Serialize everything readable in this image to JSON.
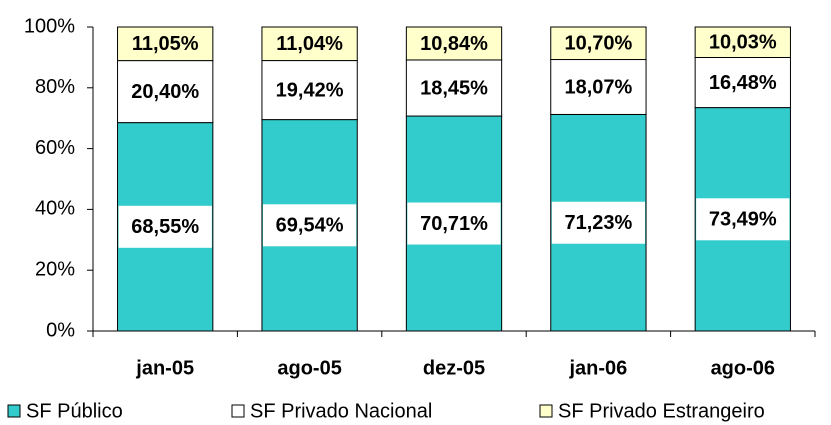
{
  "chart_data": {
    "type": "stacked_bar",
    "categories": [
      "jan-05",
      "ago-05",
      "dez-05",
      "jan-06",
      "ago-06"
    ],
    "series": [
      {
        "name": "SF Público",
        "color": "#33cccc",
        "values": [
          68.55,
          69.54,
          70.71,
          71.23,
          73.49
        ],
        "value_labels": [
          "68,55%",
          "69,54%",
          "70,71%",
          "71,23%",
          "73,49%"
        ]
      },
      {
        "name": "SF Privado Nacional",
        "color": "#ffffff",
        "values": [
          20.4,
          19.42,
          18.45,
          18.07,
          16.48
        ],
        "value_labels": [
          "20,40%",
          "19,42%",
          "18,45%",
          "18,07%",
          "16,48%"
        ]
      },
      {
        "name": "SF Privado Estrangeiro",
        "color": "#ffffcc",
        "values": [
          11.05,
          11.04,
          10.84,
          10.7,
          10.03
        ],
        "value_labels": [
          "11,05%",
          "11,04%",
          "10,84%",
          "10,70%",
          "10,03%"
        ]
      }
    ],
    "ylim": [
      0,
      100
    ],
    "yticks": [
      {
        "value": 0,
        "label": "0%"
      },
      {
        "value": 20,
        "label": "20%"
      },
      {
        "value": 40,
        "label": "40%"
      },
      {
        "value": 60,
        "label": "60%"
      },
      {
        "value": 80,
        "label": "80%"
      },
      {
        "value": 100,
        "label": "100%"
      }
    ],
    "legend": "bottom"
  }
}
